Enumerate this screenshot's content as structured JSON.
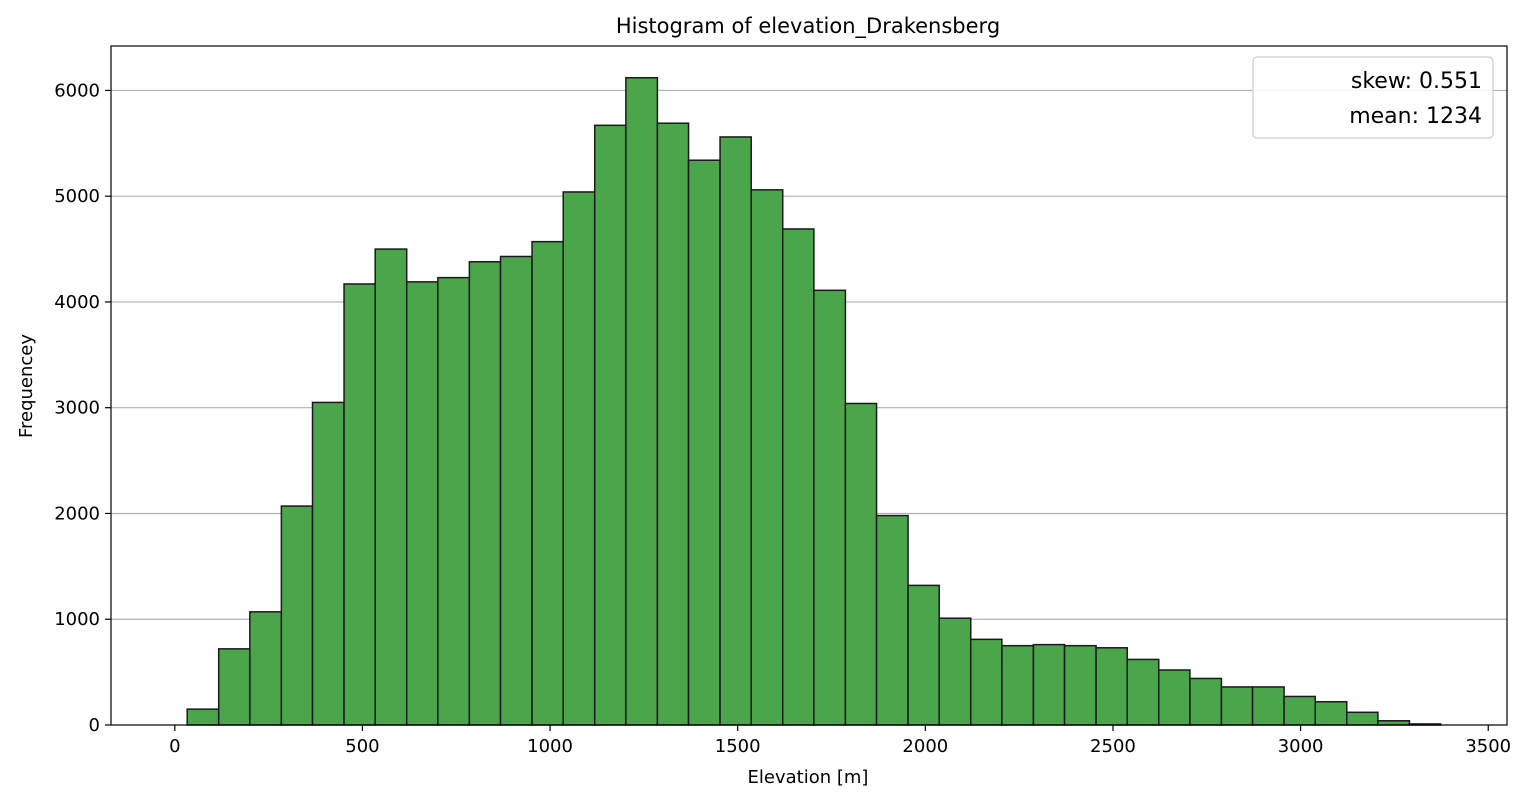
{
  "chart_data": {
    "type": "bar",
    "title": "Histogram of elevation_Drakensberg",
    "xlabel": "Elevation [m]",
    "ylabel": "Frequencey",
    "xlim": [
      -170,
      3550
    ],
    "ylim": [
      0,
      6420
    ],
    "x_ticks": [
      0,
      500,
      1000,
      1500,
      2000,
      2500,
      3000,
      3500
    ],
    "y_ticks": [
      0,
      1000,
      2000,
      3000,
      4000,
      5000,
      6000
    ],
    "grid": "y",
    "bin_edges": [
      33,
      117,
      200,
      284,
      367,
      451,
      534,
      618,
      701,
      785,
      868,
      952,
      1035,
      1119,
      1202,
      1286,
      1369,
      1453,
      1536,
      1620,
      1703,
      1787,
      1870,
      1954,
      2037,
      2121,
      2204,
      2288,
      2371,
      2455,
      2538,
      2622,
      2705,
      2789,
      2872,
      2956,
      3039,
      3123,
      3206,
      3290,
      3373
    ],
    "values": [
      150,
      720,
      1070,
      2070,
      3050,
      4170,
      4500,
      4190,
      4230,
      4380,
      4430,
      4570,
      5040,
      5670,
      6120,
      5690,
      5340,
      5560,
      5060,
      4690,
      4110,
      3040,
      1980,
      1320,
      1010,
      810,
      750,
      760,
      750,
      730,
      620,
      520,
      440,
      360,
      360,
      270,
      220,
      120,
      40,
      10
    ],
    "bar_color": "#4ba54b",
    "edge_color": "#1a1a1a",
    "legend": {
      "placement": "top-right",
      "entries": [
        "skew: 0.551",
        "mean: 1234"
      ]
    }
  }
}
